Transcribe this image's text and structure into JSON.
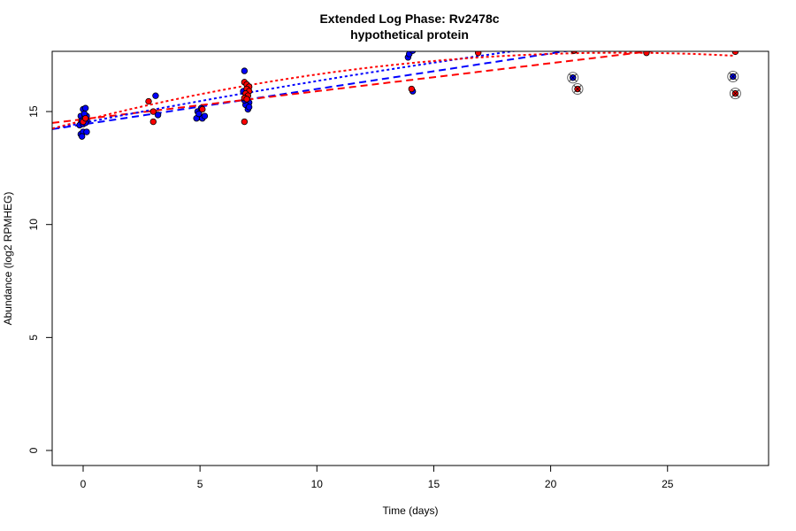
{
  "chart_data": {
    "type": "scatter",
    "title": "Extended Log Phase:      Rv2478c",
    "subtitle": "hypothetical protein",
    "xlabel": "Time  (days)",
    "ylabel": "Abundance  (log2 RPMHEG)",
    "xlim": [
      -1.32,
      29.3
    ],
    "ylim": [
      -0.65,
      17.7
    ],
    "xticks": [
      0,
      5,
      10,
      15,
      20,
      25
    ],
    "yticks": [
      0,
      5,
      10,
      15
    ],
    "grid": false,
    "colors": {
      "blue": "#0000ff",
      "red": "#ff0000"
    },
    "series": [
      {
        "color": "blue",
        "points": [
          [
            -0.1,
            14.8
          ],
          [
            0,
            15.1
          ],
          [
            0.1,
            15.15
          ],
          [
            -0.05,
            14.6
          ],
          [
            0.05,
            14.7
          ],
          [
            0.15,
            14.6
          ],
          [
            -0.15,
            14.4
          ],
          [
            0,
            14.45
          ],
          [
            0.1,
            14.5
          ],
          [
            0.15,
            14.8
          ],
          [
            -0.1,
            14.0
          ],
          [
            0,
            14.1
          ],
          [
            -0.05,
            13.9
          ],
          [
            0.15,
            14.1
          ],
          [
            0.05,
            14.9
          ],
          [
            3.1,
            15.7
          ],
          [
            3.2,
            14.85
          ],
          [
            4.9,
            15.0
          ],
          [
            5.0,
            14.75
          ],
          [
            5.1,
            14.7
          ],
          [
            4.85,
            14.7
          ],
          [
            5.2,
            14.8
          ],
          [
            5.05,
            15.15
          ],
          [
            4.95,
            14.9
          ],
          [
            6.9,
            16.8
          ],
          [
            6.85,
            15.9
          ],
          [
            7.0,
            15.6
          ],
          [
            7.1,
            15.4
          ],
          [
            6.95,
            15.3
          ],
          [
            7.05,
            15.1
          ],
          [
            7.1,
            15.2
          ],
          [
            6.9,
            15.5
          ],
          [
            13.9,
            17.4
          ],
          [
            13.95,
            17.55
          ],
          [
            14.1,
            15.9
          ],
          [
            14.1,
            17.7
          ],
          [
            17.0,
            17.8
          ]
        ]
      },
      {
        "color": "red",
        "points": [
          [
            0.0,
            14.55
          ],
          [
            0.1,
            14.7
          ],
          [
            2.8,
            15.45
          ],
          [
            3.0,
            15.0
          ],
          [
            3.0,
            14.55
          ],
          [
            5.1,
            15.1
          ],
          [
            6.9,
            14.55
          ],
          [
            6.9,
            16.3
          ],
          [
            7.0,
            16.2
          ],
          [
            7.1,
            16.1
          ],
          [
            7.0,
            16.0
          ],
          [
            7.1,
            15.9
          ],
          [
            6.95,
            15.8
          ],
          [
            7.05,
            15.7
          ],
          [
            6.9,
            15.6
          ],
          [
            7.0,
            15.55
          ],
          [
            14.05,
            16.0
          ],
          [
            16.9,
            17.6
          ],
          [
            21.0,
            17.7
          ],
          [
            24.1,
            17.6
          ],
          [
            27.9,
            17.65
          ]
        ]
      }
    ],
    "flagged_points": [
      {
        "color": "blue",
        "x": 20.95,
        "y": 16.5
      },
      {
        "color": "red",
        "x": 21.15,
        "y": 16.0
      },
      {
        "color": "blue",
        "x": 27.8,
        "y": 16.55
      },
      {
        "color": "red",
        "x": 27.9,
        "y": 15.8
      }
    ],
    "fits": [
      {
        "color": "blue",
        "style": "dashed",
        "kind": "linear",
        "coef": [
          14.43,
          0.157
        ]
      },
      {
        "color": "red",
        "style": "dashed",
        "kind": "linear",
        "coef": [
          14.66,
          0.124
        ]
      },
      {
        "color": "blue",
        "style": "dotted",
        "kind": "quadratic",
        "coef": [
          14.5,
          0.2,
          -0.0015
        ]
      },
      {
        "color": "red",
        "style": "dotted",
        "kind": "quadratic",
        "coef": [
          14.6,
          0.261,
          -0.00567
        ]
      }
    ]
  }
}
